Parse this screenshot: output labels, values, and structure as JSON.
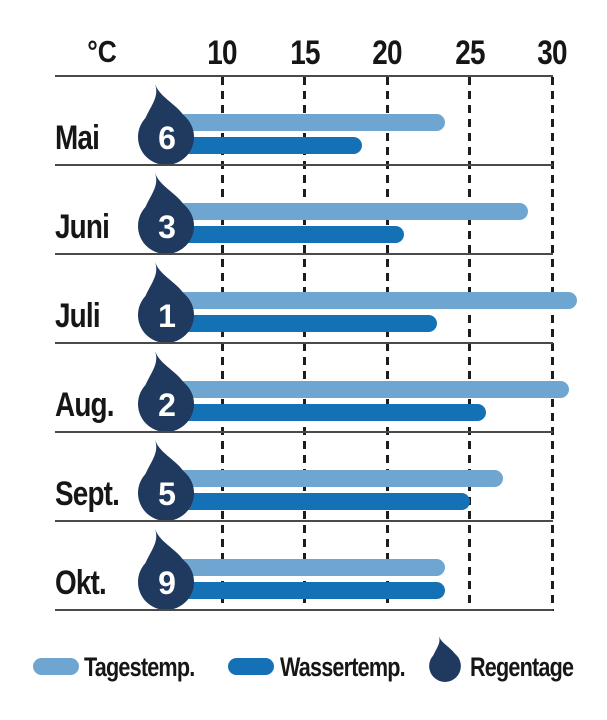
{
  "chart_data": {
    "type": "bar",
    "orientation": "horizontal",
    "unit": "°C",
    "axis_ticks": [
      10,
      15,
      20,
      25,
      30
    ],
    "xlim": [
      0,
      33
    ],
    "grid": "dashed-vertical",
    "legend_position": "bottom",
    "categories": [
      "Mai",
      "Juni",
      "Juli",
      "Aug.",
      "Sept.",
      "Okt."
    ],
    "series": [
      {
        "name": "Tagestemp.",
        "color": "#6FA6D1",
        "values": [
          23.5,
          28.5,
          31.5,
          31,
          27,
          23.5
        ]
      },
      {
        "name": "Wassertemp.",
        "color": "#1571B5",
        "values": [
          18.5,
          21,
          23,
          26,
          25,
          23.5
        ]
      }
    ],
    "rain_days": {
      "name": "Regentage",
      "color": "#20395E",
      "values": [
        6,
        3,
        1,
        2,
        5,
        9
      ]
    }
  },
  "legend": {
    "items": [
      {
        "label": "Tagestemp.",
        "swatch": "bar-light"
      },
      {
        "label": "Wassertemp.",
        "swatch": "bar-dark"
      },
      {
        "label": "Regentage",
        "swatch": "droplet"
      }
    ]
  },
  "colors": {
    "day_temp": "#6FA6D1",
    "water_temp": "#1571B5",
    "rain_drop": "#20395E",
    "axis_line": "#4a4a4a",
    "grid_dash": "#1d1d1d",
    "text": "#161616"
  }
}
